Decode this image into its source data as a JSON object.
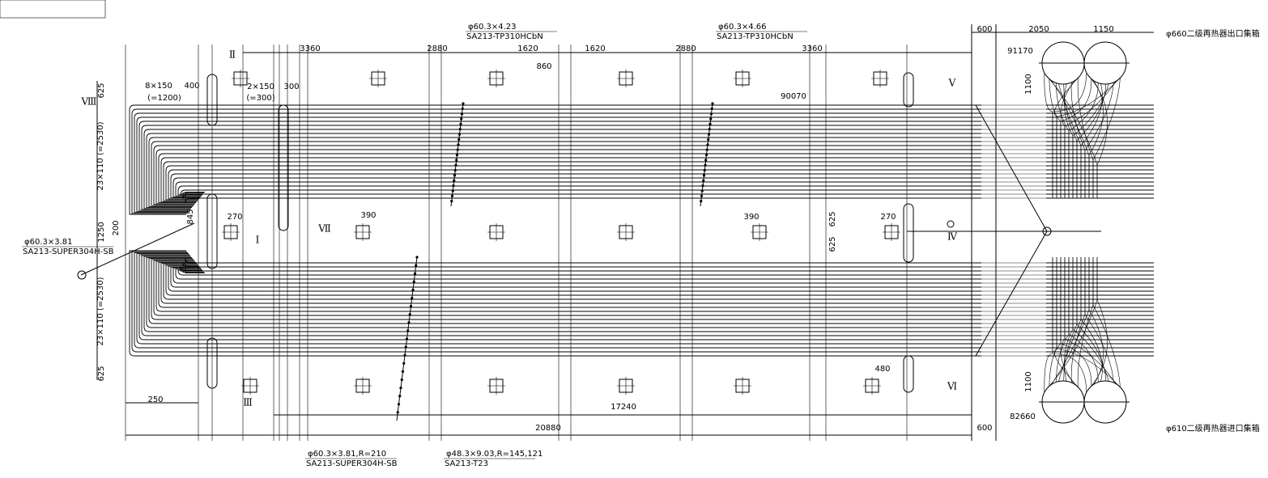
{
  "pipe_notes": [
    {
      "size": "φ60.3×4.23",
      "material": "SA213-TP310HCbN"
    },
    {
      "size": "φ60.3×4.66",
      "material": "SA213-TP310HCbN"
    },
    {
      "size": "φ60.3×3.81",
      "material": "SA213-SUPER304H-SB"
    },
    {
      "size": "φ60.3×3.81,R=210",
      "material": "SA213-SUPER304H-SB"
    },
    {
      "size": "φ48.3×9.03,R=145,121",
      "material": "SA213-T23"
    }
  ],
  "dimensions": [
    "3360",
    "2880",
    "1620",
    "1620",
    "2880",
    "3360",
    "860",
    "600",
    "2050",
    "1150",
    "1100",
    "625",
    "8×150",
    "(=1200)",
    "400",
    "2×150",
    "(=300)",
    "300",
    "23×110 (=2530)",
    "1250",
    "200",
    "845",
    "270",
    "390",
    "390",
    "625",
    "625",
    "270",
    "23×110 (=2530)",
    "625",
    "250",
    "480",
    "17240",
    "20880",
    "600",
    "1100"
  ],
  "elevations": [
    "91170",
    "90070",
    "82660"
  ],
  "section_marks": [
    "Ⅱ",
    "Ⅴ",
    "Ⅷ",
    "Ⅶ",
    "Ⅰ",
    "Ⅳ",
    "Ⅲ",
    "Ⅵ"
  ],
  "headers": {
    "outlet": "φ660二级再热器出口集箱",
    "inlet": "φ610二级再热器进口集箱"
  }
}
